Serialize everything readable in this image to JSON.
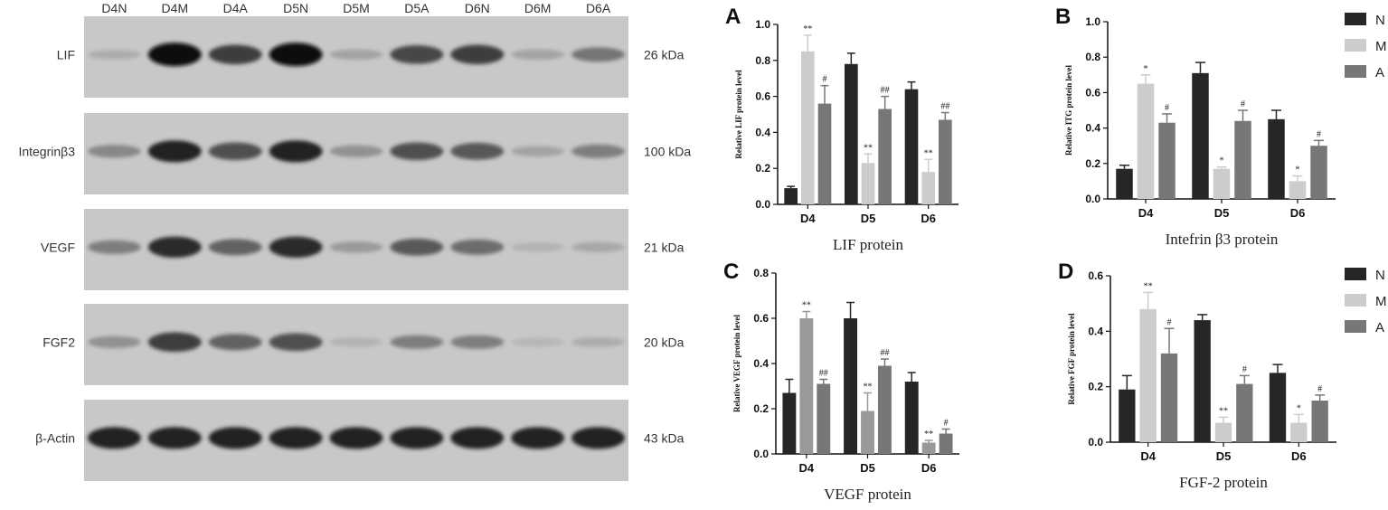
{
  "blot": {
    "lane_labels": [
      "D4N",
      "D4M",
      "D4A",
      "D5N",
      "D5M",
      "D5A",
      "D6N",
      "D6M",
      "D6A"
    ],
    "rows": [
      {
        "name": "LIF",
        "size": "26 kDa",
        "intensity": [
          0.15,
          1.0,
          0.75,
          1.0,
          0.2,
          0.7,
          0.75,
          0.2,
          0.45
        ]
      },
      {
        "name": "Integrinβ3",
        "size": "100 kDa",
        "intensity": [
          0.35,
          0.9,
          0.65,
          0.9,
          0.3,
          0.65,
          0.6,
          0.2,
          0.4
        ]
      },
      {
        "name": "VEGF",
        "size": "21 kDa",
        "intensity": [
          0.4,
          0.85,
          0.55,
          0.85,
          0.25,
          0.6,
          0.5,
          0.12,
          0.18
        ]
      },
      {
        "name": "FGF2",
        "size": "20 kDa",
        "intensity": [
          0.3,
          0.75,
          0.55,
          0.65,
          0.12,
          0.4,
          0.4,
          0.1,
          0.15
        ]
      },
      {
        "name": "β-Actin",
        "size": "43 kDa",
        "intensity": [
          0.9,
          0.9,
          0.9,
          0.9,
          0.9,
          0.9,
          0.9,
          0.9,
          0.9
        ]
      }
    ]
  },
  "colors": {
    "N": "#262626",
    "M": "#cccccc",
    "A": "#777777",
    "M_alt": "#999999"
  },
  "chart_data": [
    {
      "panel": "A",
      "type": "bar",
      "title": "LIF protein",
      "ylabel": "Relative LIF protein level",
      "categories": [
        "D4",
        "D5",
        "D6"
      ],
      "ylim": [
        0,
        1.0
      ],
      "yticks": [
        "0.0",
        "0.2",
        "0.4",
        "0.6",
        "0.8",
        "1.0"
      ],
      "series": [
        {
          "values": [
            0.09,
            0.78,
            0.64
          ],
          "errors": [
            0.01,
            0.06,
            0.04
          ],
          "marks": [
            "",
            "",
            ""
          ]
        },
        {
          "values": [
            0.85,
            0.23,
            0.18
          ],
          "errors": [
            0.09,
            0.05,
            0.07
          ],
          "marks": [
            "**",
            "**",
            "**"
          ]
        },
        {
          "values": [
            0.56,
            0.53,
            0.47
          ],
          "errors": [
            0.1,
            0.07,
            0.04
          ],
          "marks": [
            "#",
            "##",
            "##"
          ]
        }
      ]
    },
    {
      "panel": "B",
      "type": "bar",
      "title": "Intefrin β3 protein",
      "ylabel": "Relative ITG protein level",
      "categories": [
        "D4",
        "D5",
        "D6"
      ],
      "ylim": [
        0,
        1.0
      ],
      "yticks": [
        "0.0",
        "0.2",
        "0.4",
        "0.6",
        "0.8",
        "1.0"
      ],
      "legend": [
        {
          "name": "N"
        },
        {
          "name": "M"
        },
        {
          "name": "A"
        }
      ],
      "series": [
        {
          "values": [
            0.17,
            0.71,
            0.45
          ],
          "errors": [
            0.02,
            0.06,
            0.05
          ],
          "marks": [
            "",
            "",
            ""
          ]
        },
        {
          "values": [
            0.65,
            0.17,
            0.1
          ],
          "errors": [
            0.05,
            0.01,
            0.03
          ],
          "marks": [
            "*",
            "*",
            "*"
          ]
        },
        {
          "values": [
            0.43,
            0.44,
            0.3
          ],
          "errors": [
            0.05,
            0.06,
            0.03
          ],
          "marks": [
            "#",
            "#",
            "#"
          ]
        }
      ]
    },
    {
      "panel": "C",
      "type": "bar",
      "title": "VEGF protein",
      "ylabel": "Relative VEGF protein level",
      "categories": [
        "D4",
        "D5",
        "D6"
      ],
      "ylim": [
        0,
        0.8
      ],
      "yticks": [
        "0.0",
        "0.2",
        "0.4",
        "0.6",
        "0.8"
      ],
      "series": [
        {
          "values": [
            0.27,
            0.6,
            0.32
          ],
          "errors": [
            0.06,
            0.07,
            0.04
          ],
          "marks": [
            "",
            "",
            ""
          ]
        },
        {
          "values": [
            0.6,
            0.19,
            0.05
          ],
          "errors": [
            0.03,
            0.08,
            0.01
          ],
          "marks": [
            "**",
            "**",
            "**"
          ]
        },
        {
          "values": [
            0.31,
            0.39,
            0.09
          ],
          "errors": [
            0.02,
            0.03,
            0.02
          ],
          "marks": [
            "##",
            "##",
            "#"
          ]
        }
      ]
    },
    {
      "panel": "D",
      "type": "bar",
      "title": "FGF-2 protein",
      "ylabel": "Relative FGF protein level",
      "categories": [
        "D4",
        "D5",
        "D6"
      ],
      "ylim": [
        0,
        0.6
      ],
      "yticks": [
        "0.0",
        "0.2",
        "0.4",
        "0.6"
      ],
      "legend": [
        {
          "name": "N"
        },
        {
          "name": "M"
        },
        {
          "name": "A"
        }
      ],
      "series": [
        {
          "values": [
            0.19,
            0.44,
            0.25
          ],
          "errors": [
            0.05,
            0.02,
            0.03
          ],
          "marks": [
            "",
            "",
            ""
          ]
        },
        {
          "values": [
            0.48,
            0.07,
            0.07
          ],
          "errors": [
            0.06,
            0.02,
            0.03
          ],
          "marks": [
            "**",
            "**",
            "*"
          ]
        },
        {
          "values": [
            0.32,
            0.21,
            0.15
          ],
          "errors": [
            0.09,
            0.03,
            0.02
          ],
          "marks": [
            "#",
            "#",
            "#"
          ]
        }
      ]
    }
  ]
}
